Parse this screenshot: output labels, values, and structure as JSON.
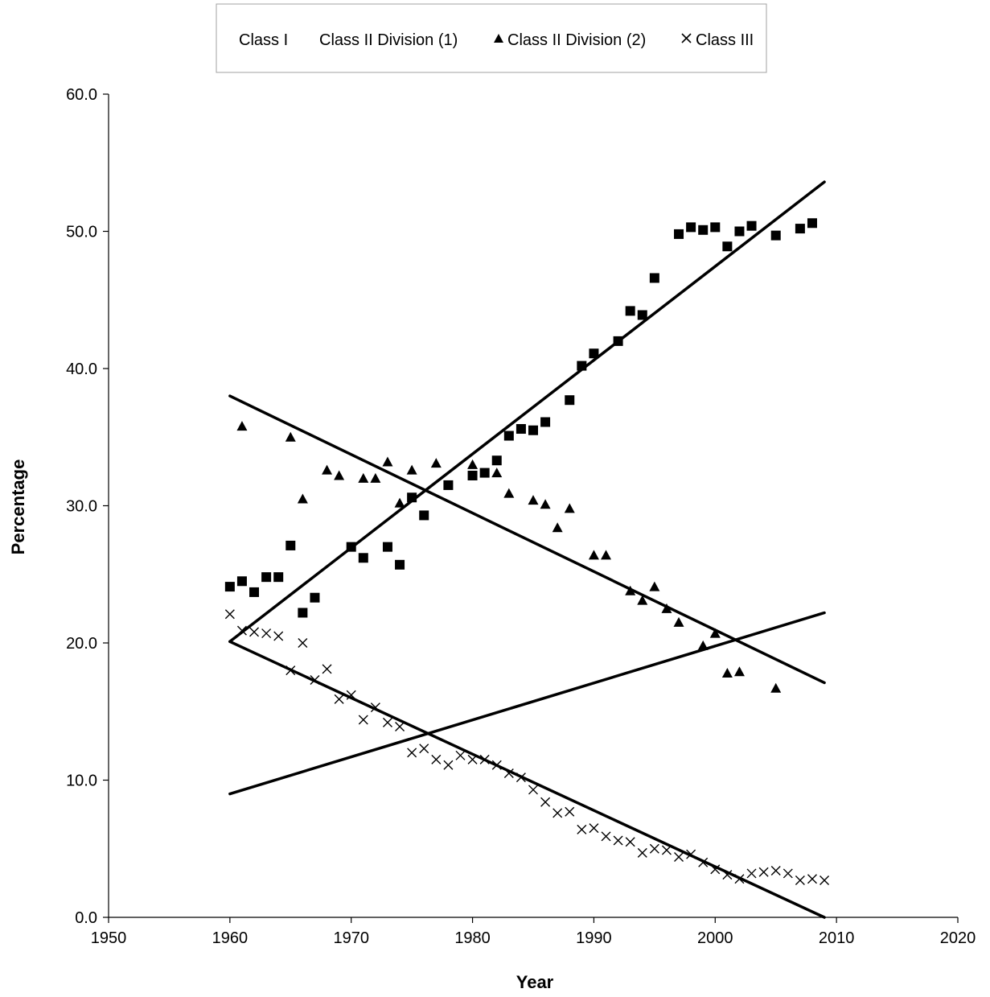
{
  "chart_data": {
    "type": "scatter",
    "xlabel": "Year",
    "ylabel": "Percentage",
    "xlim": [
      1950,
      2020
    ],
    "ylim": [
      0,
      60
    ],
    "x_ticks": [
      "1950",
      "1960",
      "1970",
      "1980",
      "1990",
      "2000",
      "2010",
      "2020"
    ],
    "y_ticks": [
      "0.0",
      "10.0",
      "20.0",
      "30.0",
      "40.0",
      "50.0",
      "60.0"
    ],
    "legend_position": "top-center",
    "grid": false,
    "series": [
      {
        "name": "Class I",
        "marker": "none",
        "points": [],
        "trend": [
          [
            1960,
            9.0
          ],
          [
            2009,
            22.2
          ]
        ]
      },
      {
        "name": "Class II Division (1)",
        "marker": "square",
        "points": [
          [
            1960,
            24.1
          ],
          [
            1961,
            24.5
          ],
          [
            1962,
            23.7
          ],
          [
            1963,
            24.8
          ],
          [
            1964,
            24.8
          ],
          [
            1965,
            27.1
          ],
          [
            1966,
            22.2
          ],
          [
            1967,
            23.3
          ],
          [
            1970,
            27.0
          ],
          [
            1971,
            26.2
          ],
          [
            1973,
            27.0
          ],
          [
            1974,
            25.7
          ],
          [
            1975,
            30.6
          ],
          [
            1976,
            29.3
          ],
          [
            1978,
            31.5
          ],
          [
            1980,
            32.2
          ],
          [
            1981,
            32.4
          ],
          [
            1982,
            33.3
          ],
          [
            1983,
            35.1
          ],
          [
            1984,
            35.6
          ],
          [
            1985,
            35.5
          ],
          [
            1986,
            36.1
          ],
          [
            1988,
            37.7
          ],
          [
            1989,
            40.2
          ],
          [
            1990,
            41.1
          ],
          [
            1992,
            42.0
          ],
          [
            1993,
            44.2
          ],
          [
            1994,
            43.9
          ],
          [
            1995,
            46.6
          ],
          [
            1997,
            49.8
          ],
          [
            1998,
            50.3
          ],
          [
            1999,
            50.1
          ],
          [
            2000,
            50.3
          ],
          [
            2001,
            48.9
          ],
          [
            2002,
            50.0
          ],
          [
            2003,
            50.4
          ],
          [
            2005,
            49.7
          ],
          [
            2007,
            50.2
          ],
          [
            2008,
            50.6
          ]
        ],
        "trend": [
          [
            1960,
            20.1
          ],
          [
            2009,
            53.6
          ]
        ]
      },
      {
        "name": "Class II Division (2)",
        "marker": "triangle",
        "points": [
          [
            1961,
            35.8
          ],
          [
            1965,
            35.0
          ],
          [
            1966,
            30.5
          ],
          [
            1968,
            32.6
          ],
          [
            1969,
            32.2
          ],
          [
            1971,
            32.0
          ],
          [
            1972,
            32.0
          ],
          [
            1973,
            33.2
          ],
          [
            1974,
            30.2
          ],
          [
            1975,
            32.6
          ],
          [
            1977,
            33.1
          ],
          [
            1980,
            33.0
          ],
          [
            1982,
            32.4
          ],
          [
            1983,
            30.9
          ],
          [
            1985,
            30.4
          ],
          [
            1986,
            30.1
          ],
          [
            1987,
            28.4
          ],
          [
            1988,
            29.8
          ],
          [
            1990,
            26.4
          ],
          [
            1991,
            26.4
          ],
          [
            1993,
            23.8
          ],
          [
            1994,
            23.1
          ],
          [
            1995,
            24.1
          ],
          [
            1996,
            22.5
          ],
          [
            1997,
            21.5
          ],
          [
            1999,
            19.8
          ],
          [
            2000,
            20.7
          ],
          [
            2001,
            17.8
          ],
          [
            2002,
            17.9
          ],
          [
            2005,
            16.7
          ]
        ],
        "trend": [
          [
            1960,
            38.0
          ],
          [
            2009,
            17.1
          ]
        ]
      },
      {
        "name": "Class III",
        "marker": "cross",
        "points": [
          [
            1960,
            22.1
          ],
          [
            1961,
            20.9
          ],
          [
            1962,
            20.8
          ],
          [
            1963,
            20.7
          ],
          [
            1964,
            20.5
          ],
          [
            1965,
            18.0
          ],
          [
            1966,
            20.0
          ],
          [
            1967,
            17.3
          ],
          [
            1968,
            18.1
          ],
          [
            1969,
            15.9
          ],
          [
            1970,
            16.2
          ],
          [
            1971,
            14.4
          ],
          [
            1972,
            15.3
          ],
          [
            1973,
            14.2
          ],
          [
            1974,
            13.9
          ],
          [
            1975,
            12.0
          ],
          [
            1976,
            12.3
          ],
          [
            1977,
            11.5
          ],
          [
            1978,
            11.1
          ],
          [
            1979,
            11.8
          ],
          [
            1980,
            11.5
          ],
          [
            1981,
            11.5
          ],
          [
            1982,
            11.1
          ],
          [
            1983,
            10.5
          ],
          [
            1984,
            10.2
          ],
          [
            1985,
            9.3
          ],
          [
            1986,
            8.4
          ],
          [
            1987,
            7.6
          ],
          [
            1988,
            7.7
          ],
          [
            1989,
            6.4
          ],
          [
            1990,
            6.5
          ],
          [
            1991,
            5.9
          ],
          [
            1992,
            5.6
          ],
          [
            1993,
            5.5
          ],
          [
            1994,
            4.7
          ],
          [
            1995,
            5.0
          ],
          [
            1996,
            4.9
          ],
          [
            1997,
            4.4
          ],
          [
            1998,
            4.6
          ],
          [
            1999,
            4.0
          ],
          [
            2000,
            3.5
          ],
          [
            2001,
            3.1
          ],
          [
            2002,
            2.8
          ],
          [
            2003,
            3.2
          ],
          [
            2004,
            3.3
          ],
          [
            2005,
            3.4
          ],
          [
            2006,
            3.2
          ],
          [
            2007,
            2.7
          ],
          [
            2008,
            2.8
          ],
          [
            2009,
            2.7
          ]
        ],
        "trend": [
          [
            1960,
            20.1
          ],
          [
            2009,
            0.0
          ]
        ]
      }
    ]
  }
}
